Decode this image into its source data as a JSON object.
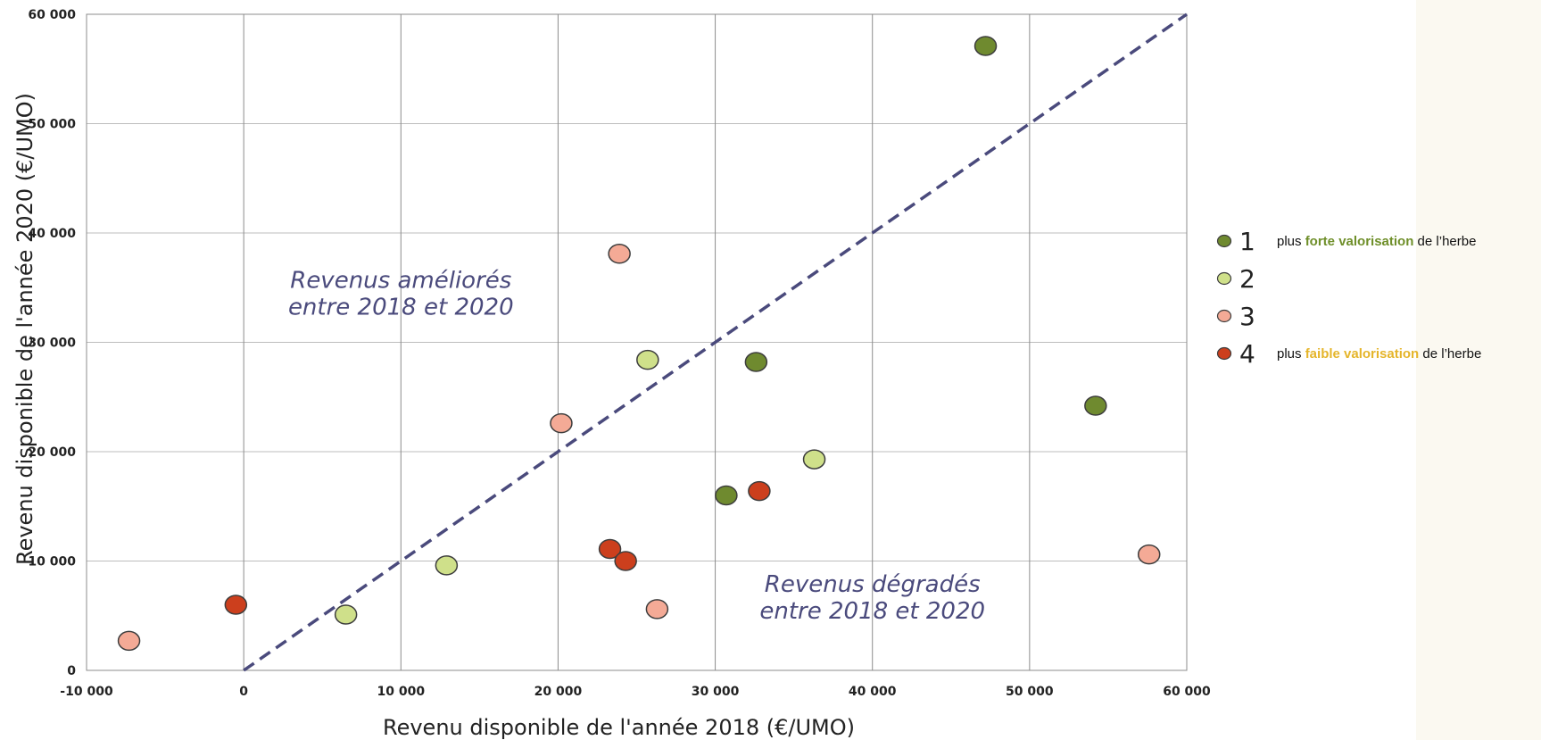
{
  "chart_data": {
    "type": "scatter",
    "xlabel": "Revenu disponible de l'année 2018 (€/UMO)",
    "ylabel": "Revenu disponible de l'année 2020 (€/UMO)",
    "xlim": [
      -10000,
      60000
    ],
    "ylim": [
      0,
      60000
    ],
    "x_ticks": [
      -10000,
      0,
      10000,
      20000,
      30000,
      40000,
      50000,
      60000
    ],
    "y_ticks": [
      0,
      10000,
      20000,
      30000,
      40000,
      50000,
      60000
    ],
    "x_tick_labels": [
      "-10 000",
      "0",
      "10 000",
      "20 000",
      "30 000",
      "40 000",
      "50 000",
      "60 000"
    ],
    "y_tick_labels": [
      "0",
      "10 000",
      "20 000",
      "30 000",
      "40 000",
      "50 000",
      "60 000"
    ],
    "grid": true,
    "reference_line": {
      "style": "dashed",
      "color": "#4a4a7c",
      "from": [
        0,
        0
      ],
      "to": [
        60000,
        60000
      ]
    },
    "annotations": [
      {
        "lines": [
          "Revenus améliorés",
          "entre 2018 et 2020"
        ],
        "x": 10000,
        "y": 35000
      },
      {
        "lines": [
          "Revenus dégradés",
          "entre 2018 et 2020"
        ],
        "x": 40000,
        "y": 7200
      }
    ],
    "legend_position": "right",
    "series": [
      {
        "name": "1",
        "color": "#6f8a2f",
        "description": [
          "plus ",
          "forte valorisation",
          " de l’herbe"
        ],
        "points": [
          [
            47200,
            57100
          ],
          [
            32600,
            28200
          ],
          [
            54200,
            24200
          ],
          [
            30700,
            16000
          ]
        ]
      },
      {
        "name": "2",
        "color": "#cfe08a",
        "description": [],
        "points": [
          [
            25700,
            28400
          ],
          [
            36300,
            19300
          ],
          [
            12900,
            9600
          ],
          [
            6500,
            5100
          ]
        ]
      },
      {
        "name": "3",
        "color": "#f4aa96",
        "description": [],
        "points": [
          [
            23900,
            38100
          ],
          [
            20200,
            22600
          ],
          [
            57600,
            10600
          ],
          [
            26300,
            5600
          ],
          [
            -7300,
            2700
          ]
        ]
      },
      {
        "name": "4",
        "color": "#cc3f1d",
        "description": [
          "plus ",
          "faible valorisation",
          " de l’herbe"
        ],
        "points": [
          [
            32800,
            16400
          ],
          [
            23300,
            11100
          ],
          [
            24300,
            10000
          ],
          [
            -500,
            6000
          ]
        ]
      }
    ]
  }
}
